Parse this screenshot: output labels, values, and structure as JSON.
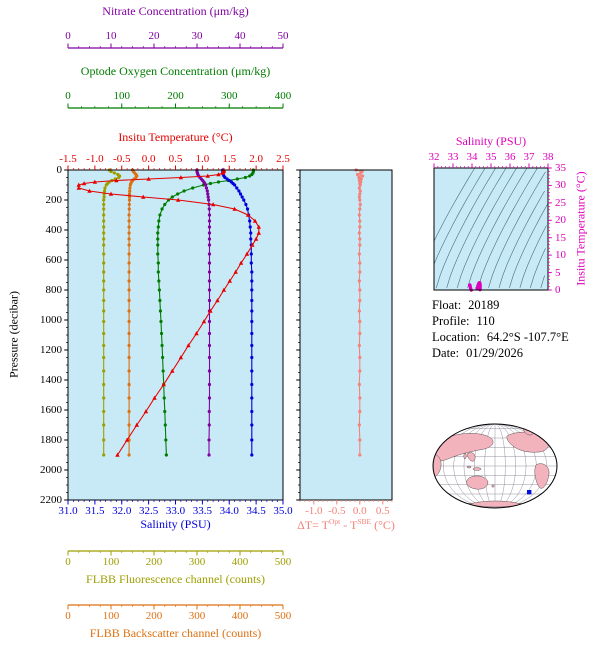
{
  "colors": {
    "nitrate": "#8000a0",
    "oxygen": "#007c00",
    "temperature": "#e60000",
    "salinity": "#0000dd",
    "fluorescence": "#9e9e00",
    "backscatter": "#dd7010",
    "delta_t": "#f4827a",
    "ts": "#dd00bb",
    "axis": "#000000",
    "plot_bg": "#c8eaf6",
    "contour": "#456e7e",
    "map_land": "#f2b3bd",
    "map_ocean": "#ffffff",
    "map_marker": "#0011dd"
  },
  "info": {
    "rows": [
      {
        "label": "Float:",
        "value": "20189"
      },
      {
        "label": "Profile:",
        "value": "110"
      },
      {
        "label": "Location:",
        "value": "64.2°S -107.7°E"
      },
      {
        "label": "Date:",
        "value": "01/29/2026"
      }
    ]
  },
  "chart_data": [
    {
      "id": "profiles",
      "type": "line",
      "ylabel": "Pressure (decibar)",
      "ylim": [
        0,
        2200
      ],
      "y_ticks": [
        "0",
        "200",
        "400",
        "600",
        "800",
        "1000",
        "1200",
        "1400",
        "1600",
        "1800",
        "2000",
        "2200"
      ],
      "y_minor": 50,
      "pressure": [
        0,
        10,
        20,
        30,
        40,
        50,
        60,
        70,
        80,
        90,
        100,
        120,
        140,
        160,
        180,
        200,
        230,
        260,
        300,
        340,
        380,
        420,
        460,
        500,
        560,
        620,
        680,
        740,
        800,
        870,
        940,
        1010,
        1090,
        1170,
        1250,
        1340,
        1430,
        1520,
        1610,
        1700,
        1800,
        1900
      ],
      "series": [
        {
          "name": "Nitrate Concentration (μm/kg)",
          "color_key": "nitrate",
          "xlim": [
            0,
            50
          ],
          "ticks": [
            "0",
            "10",
            "20",
            "30",
            "40",
            "50"
          ],
          "minor": 2.5,
          "marker": "circle",
          "values": [
            30,
            30,
            30.1,
            30.2,
            30.4,
            30.7,
            31,
            31.3,
            31.6,
            31.8,
            32,
            32.2,
            32.4,
            32.5,
            32.6,
            32.7,
            32.8,
            32.85,
            32.9,
            32.9,
            32.9,
            32.9,
            32.9,
            32.9,
            32.9,
            32.9,
            32.9,
            32.9,
            32.9,
            32.9,
            32.9,
            32.9,
            32.9,
            32.9,
            32.9,
            32.9,
            32.9,
            32.9,
            32.85,
            32.85,
            32.8,
            32.8
          ]
        },
        {
          "name": "Optode Oxygen Concentration (μm/kg)",
          "color_key": "oxygen",
          "xlim": [
            0,
            400
          ],
          "ticks": [
            "0",
            "100",
            "200",
            "300",
            "400"
          ],
          "minor": 25,
          "marker": "circle",
          "values": [
            345,
            345,
            344,
            342,
            338,
            330,
            315,
            298,
            280,
            265,
            252,
            232,
            216,
            204,
            194,
            187,
            180,
            175,
            171,
            169,
            168,
            167,
            167,
            167,
            167,
            168,
            168,
            169,
            170,
            171,
            172,
            173,
            174,
            175,
            176,
            177,
            178,
            179,
            180,
            181,
            182,
            183
          ]
        },
        {
          "name": "Insitu Temperature (°C)",
          "color_key": "temperature",
          "xlim": [
            -1.5,
            2.5
          ],
          "ticks": [
            "-1.5",
            "-1.0",
            "-0.5",
            "0.0",
            "0.5",
            "1.0",
            "1.5",
            "2.0",
            "2.5"
          ],
          "minor": 0.1,
          "marker": "triangle",
          "values": [
            1.4,
            1.4,
            1.38,
            1.3,
            1.1,
            0.6,
            0,
            -0.6,
            -1,
            -1.2,
            -1.3,
            -1.3,
            -1.1,
            -0.7,
            -0.1,
            0.55,
            1.2,
            1.6,
            1.85,
            1.98,
            2.05,
            2.05,
            2,
            1.93,
            1.83,
            1.72,
            1.62,
            1.51,
            1.4,
            1.28,
            1.15,
            1.03,
            0.89,
            0.74,
            0.6,
            0.44,
            0.28,
            0.11,
            -0.05,
            -0.22,
            -0.4,
            -0.58
          ]
        },
        {
          "name": "Salinity (PSU)",
          "color_key": "salinity",
          "xlim": [
            31,
            35
          ],
          "ticks": [
            "31.0",
            "31.5",
            "32.0",
            "32.5",
            "33.0",
            "33.5",
            "34.0",
            "34.5",
            "35.0"
          ],
          "minor": 0.1,
          "marker": "circle",
          "values": [
            33.88,
            33.88,
            33.88,
            33.89,
            33.9,
            33.92,
            33.96,
            34,
            34.04,
            34.07,
            34.1,
            34.14,
            34.18,
            34.21,
            34.24,
            34.27,
            34.31,
            34.34,
            34.36,
            34.38,
            34.39,
            34.4,
            34.4,
            34.41,
            34.41,
            34.41,
            34.42,
            34.42,
            34.42,
            34.42,
            34.42,
            34.42,
            34.42,
            34.42,
            34.42,
            34.42,
            34.42,
            34.42,
            34.42,
            34.42,
            34.42,
            34.42
          ]
        },
        {
          "name": "FLBB Fluorescence channel (counts)",
          "color_key": "fluorescence",
          "xlim": [
            0,
            500
          ],
          "ticks": [
            "0",
            "100",
            "200",
            "300",
            "400",
            "500"
          ],
          "minor": 25,
          "marker": "circle",
          "values": [
            96,
            100,
            108,
            116,
            120,
            118,
            110,
            102,
            96,
            92,
            89,
            86,
            85,
            84,
            84,
            83,
            83,
            83,
            83,
            83,
            83,
            83,
            83,
            83,
            83,
            83,
            83,
            83,
            83,
            83,
            83,
            83,
            83,
            83,
            83,
            83,
            83,
            83,
            83,
            83,
            83,
            83
          ]
        },
        {
          "name": "FLBB Backscatter channel (counts)",
          "color_key": "backscatter",
          "xlim": [
            0,
            500
          ],
          "ticks": [
            "0",
            "100",
            "200",
            "300",
            "400",
            "500"
          ],
          "minor": 25,
          "marker": "circle",
          "values": [
            150,
            152,
            155,
            158,
            160,
            158,
            154,
            150,
            148,
            146,
            145,
            144,
            143.5,
            143,
            143,
            143,
            142.5,
            142.5,
            142,
            142,
            142,
            142,
            142,
            142,
            142,
            142,
            142,
            142,
            142,
            142,
            142,
            142,
            142,
            142,
            142,
            142,
            142,
            142,
            142,
            142,
            142,
            142
          ]
        }
      ]
    },
    {
      "id": "delta_t",
      "type": "line",
      "title_parts": {
        "pre": "ΔT= T",
        "sup1": "Opt",
        "mid": " - T",
        "sup2": "SBE",
        "post": " (°C)"
      },
      "xlim": [
        -1.3,
        0.7
      ],
      "ticks": [
        "-1.0",
        "-0.5",
        "0.0",
        "0.5"
      ],
      "minor": 0.1,
      "ylim": [
        0,
        2200
      ],
      "values": [
        -0.08,
        0.05,
        0.02,
        -0.05,
        0.06,
        -0.02,
        0.03,
        -0.01,
        0.02,
        0,
        0.01,
        -0.01,
        0.01,
        0,
        -0.01,
        0,
        0.01,
        0,
        -0.01,
        0,
        0,
        -0.01,
        0,
        0,
        -0.01,
        0,
        0,
        -0.01,
        0,
        0,
        -0.01,
        0,
        0,
        -0.01,
        0,
        0,
        -0.01,
        0,
        0,
        -0.01,
        0,
        0
      ]
    },
    {
      "id": "ts_diagram",
      "type": "scatter",
      "xlabel": "Salinity (PSU)",
      "ylabel": "Insitu Temperature (°C)",
      "xlim": [
        32,
        38
      ],
      "ylim": [
        0,
        35
      ],
      "x_ticks": [
        "32",
        "33",
        "34",
        "35",
        "36",
        "37",
        "38"
      ],
      "x_minor": 0.2,
      "y_ticks": [
        "0",
        "5",
        "10",
        "15",
        "20",
        "25",
        "30",
        "35"
      ],
      "y_minor": 1,
      "points_source": "salinity and temperature profile series of chart_data[0], temperatures >= 0"
    }
  ]
}
